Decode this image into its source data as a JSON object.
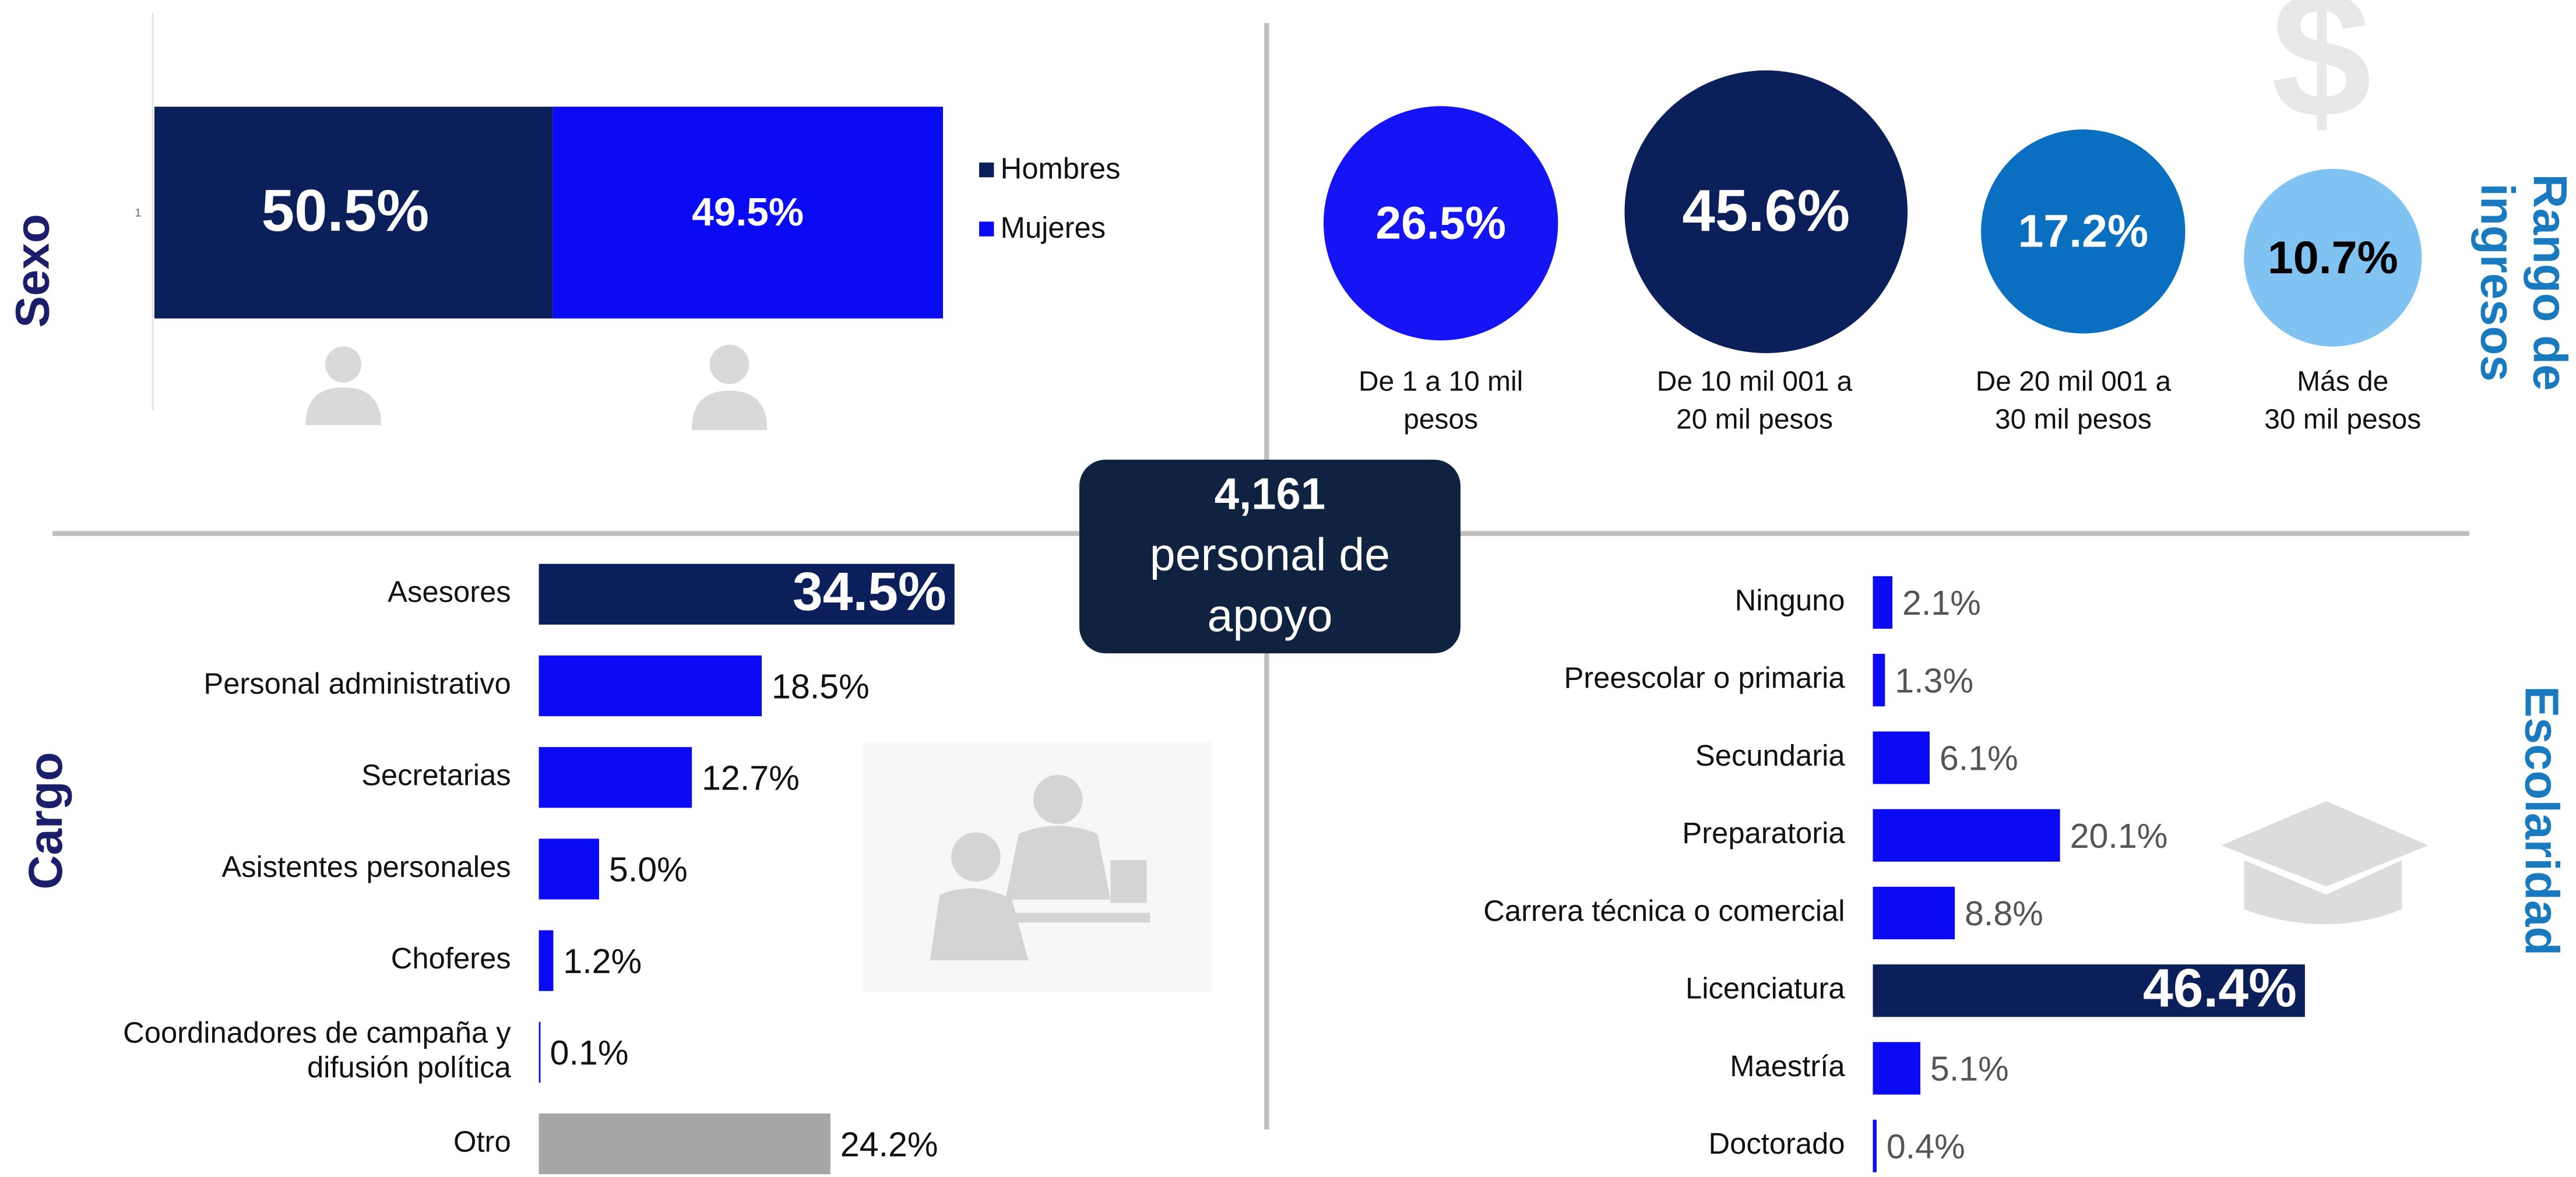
{
  "summary": {
    "count": "4,161",
    "text": [
      "personal de",
      "apoyo"
    ]
  },
  "chart_data": [
    {
      "type": "stacked_bar",
      "title": "Sexo",
      "title_color": "#1b1f6b",
      "categories": [
        "1"
      ],
      "series": [
        {
          "name": "Hombres",
          "color": "#0b1f5b",
          "values": [
            50.5
          ],
          "value_labels": [
            "50.5%"
          ]
        },
        {
          "name": "Mujeres",
          "color": "#0a0af5",
          "values": [
            49.5
          ],
          "value_labels": [
            "49.5%"
          ]
        }
      ],
      "legend": "right"
    },
    {
      "type": "bubble",
      "title": [
        "Rango de",
        "ingresos"
      ],
      "title_color": "#1a7ac0",
      "categories": [
        [
          "De 1 a 10 mil",
          "pesos"
        ],
        [
          "De 10 mil 001 a",
          "20 mil pesos"
        ],
        [
          "De 20 mil 001 a",
          "30 mil pesos"
        ],
        [
          "Más de",
          "30 mil pesos"
        ]
      ],
      "values": [
        26.5,
        45.6,
        17.2,
        10.7
      ],
      "value_labels": [
        "26.5%",
        "45.6%",
        "17.2%",
        "10.7%"
      ],
      "colors": [
        "#1414f5",
        "#0b1f5b",
        "#0a6fc0",
        "#80c2f2"
      ]
    },
    {
      "type": "bar",
      "title": "Cargo",
      "title_color": "#1b1f6b",
      "categories": [
        "Asesores",
        "Personal administrativo",
        "Secretarias",
        "Asistentes personales",
        "Choferes",
        [
          "Coordinadores de campaña y",
          "difusión política"
        ],
        "Otro"
      ],
      "values": [
        34.5,
        18.5,
        12.7,
        5.0,
        1.2,
        0.1,
        24.2
      ],
      "value_labels": [
        "34.5%",
        "18.5%",
        "12.7%",
        "5.0%",
        "1.2%",
        "0.1%",
        "24.2%"
      ],
      "colors": [
        "#0b1f5b",
        "#0a0af5",
        "#0a0af5",
        "#0a0af5",
        "#0a0af5",
        "#0a0af5",
        "#a6a6a6"
      ]
    },
    {
      "type": "bar",
      "title": "Escolaridad",
      "title_color": "#1a7ac0",
      "categories": [
        "Ninguno",
        "Preescolar o primaria",
        "Secundaria",
        "Preparatoria",
        "Carrera técnica o comercial",
        "Licenciatura",
        "Maestría",
        "Doctorado"
      ],
      "values": [
        2.1,
        1.3,
        6.1,
        20.1,
        8.8,
        46.4,
        5.1,
        0.4
      ],
      "value_labels": [
        "2.1%",
        "1.3%",
        "6.1%",
        "20.1%",
        "8.8%",
        "46.4%",
        "5.1%",
        "0.4%"
      ],
      "colors": [
        "#0a0af5",
        "#0a0af5",
        "#0a0af5",
        "#0a0af5",
        "#0a0af5",
        "#0b1f5b",
        "#0a0af5",
        "#0a0af5"
      ]
    }
  ]
}
